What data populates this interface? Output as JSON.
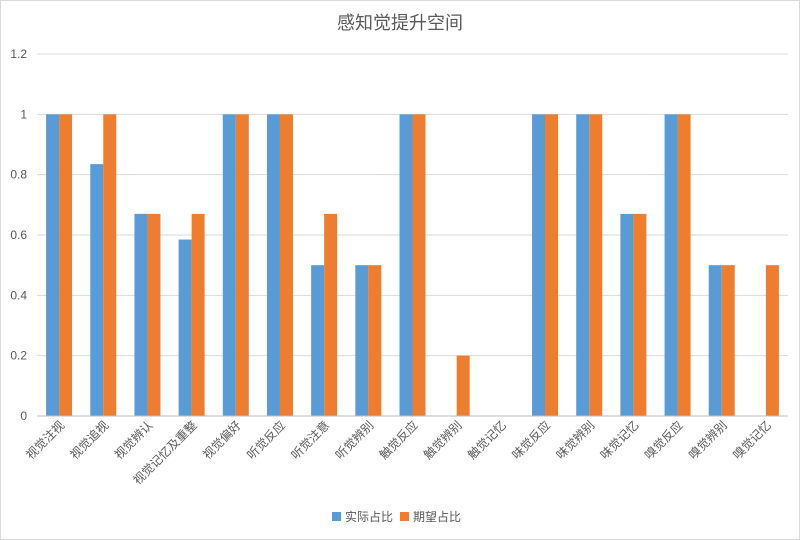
{
  "chart_data": {
    "type": "bar",
    "title": "感知觉提升空间",
    "categories": [
      "视觉注视",
      "视觉追视",
      "视觉辨认",
      "视觉记忆及重整",
      "视觉偏好",
      "听觉反应",
      "听觉注意",
      "听觉辨别",
      "触觉反应",
      "触觉辨别",
      "触觉记忆",
      "味觉反应",
      "味觉辨别",
      "味觉记忆",
      "嗅觉反应",
      "嗅觉辨别",
      "嗅觉记忆"
    ],
    "series": [
      {
        "name": "实际占比",
        "color": "#5b9bd5",
        "values": [
          1,
          0.835,
          0.67,
          0.585,
          1,
          1,
          0.5,
          0.5,
          1,
          0,
          0,
          1,
          1,
          0.67,
          1,
          0.5,
          0
        ]
      },
      {
        "name": "期望占比",
        "color": "#ed7d31",
        "values": [
          1,
          1,
          0.67,
          0.67,
          1,
          1,
          0.67,
          0.5,
          1,
          0.2,
          0,
          1,
          1,
          0.67,
          1,
          0.5,
          0.5
        ]
      }
    ],
    "ylim": [
      0,
      1.2
    ],
    "yticks": [
      "0",
      "0.2",
      "0.4",
      "0.6",
      "0.8",
      "1",
      "1.2"
    ],
    "grid": true,
    "legend_position": "bottom",
    "colors": {
      "gridline": "#d9d9d9",
      "axis": "#bfbfbf",
      "text": "#595959"
    }
  }
}
